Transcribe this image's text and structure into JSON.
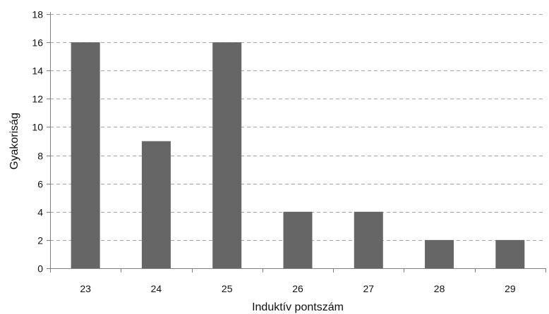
{
  "chart_data": {
    "type": "bar",
    "title": "",
    "xlabel": "Induktív pontszám",
    "ylabel": "Gyakoriság",
    "categories": [
      "23",
      "24",
      "25",
      "26",
      "27",
      "28",
      "29"
    ],
    "values": [
      16,
      9,
      16,
      4,
      4,
      2,
      2
    ],
    "ylim": [
      0,
      18
    ],
    "yticks": [
      "0",
      "2",
      "4",
      "6",
      "8",
      "10",
      "12",
      "14",
      "16",
      "18"
    ],
    "grid": true,
    "grid_style": "dashed",
    "legend": "none",
    "colors": {
      "bar": "#666666",
      "grid": "#a6a6a6",
      "axis": "#7f7f7f",
      "text": "#111111"
    }
  }
}
